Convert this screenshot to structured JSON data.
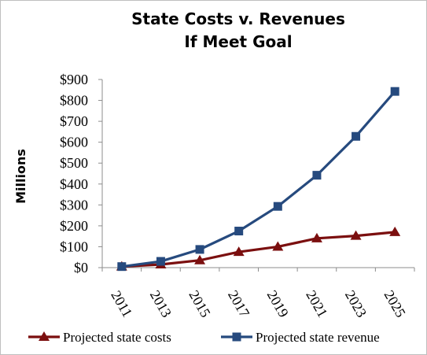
{
  "chart_data": {
    "type": "line",
    "title_lines": [
      "State Costs v. Revenues",
      "If Meet Goal"
    ],
    "xlabel": "",
    "ylabel": "Millions",
    "x": [
      "2011",
      "2013",
      "2015",
      "2017",
      "2019",
      "2021",
      "2023",
      "2025"
    ],
    "ylim": [
      0,
      900
    ],
    "yticks": [
      0,
      100,
      200,
      300,
      400,
      500,
      600,
      700,
      800,
      900
    ],
    "ytick_labels": [
      "$0",
      "$100",
      "$200",
      "$300",
      "$400",
      "$500",
      "$600",
      "$700",
      "$800",
      "$900"
    ],
    "grid": false,
    "legend_position": "bottom",
    "series": [
      {
        "name": "Projected state costs",
        "color": "#7b0f0f",
        "marker": "triangle",
        "values": [
          5,
          15,
          35,
          75,
          100,
          140,
          152,
          170
        ]
      },
      {
        "name": "Projected state revenue",
        "color": "#264a7e",
        "marker": "square",
        "values": [
          5,
          30,
          87,
          175,
          293,
          442,
          628,
          843
        ]
      }
    ]
  }
}
